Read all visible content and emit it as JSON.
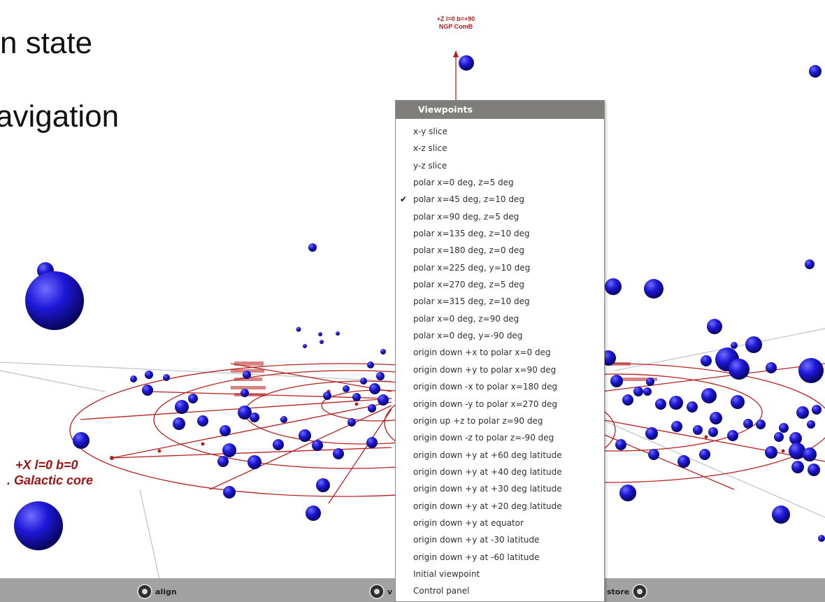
{
  "slide": {
    "line1": "n state",
    "line2": "avigation"
  },
  "scene": {
    "top_axis_label_line1": "+Z l=0 b=+90",
    "top_axis_label_line2": "NGP ComB",
    "x_axis_label_line1": "+X l=0 b=0",
    "x_axis_label_line2": ". Galactic core",
    "accent_red": "#b01c1c",
    "star_color": "#1a14c8"
  },
  "menu": {
    "title": "Viewpoints",
    "checked_index": 4,
    "items": [
      "x-y slice",
      "x-z slice",
      "y-z slice",
      "polar x=0 deg, z=5 deg",
      "polar x=45 deg, z=10 deg",
      "polar x=90 deg, z=5 deg",
      "polar x=135 deg, z=10 deg",
      "polar x=180 deg, z=0 deg",
      "polar x=225 deg, y=10 deg",
      "polar x=270 deg, z=5 deg",
      "polar x=315 deg, z=10 deg",
      "polar x=0 deg, z=90 deg",
      "polar x=0 deg, y=-90 deg",
      "origin down +x to polar x=0 deg",
      "origin down +y to polar x=90 deg",
      "origin down -x to polar x=180 deg",
      "origin down -y to polar x=270 deg",
      "origin up +z to polar z=90 deg",
      "origin down -z to polar z=-90 deg",
      "origin down +y at +60 deg latitude",
      "origin down +y at +40 deg latitude",
      "origin down +y at +30 deg latitude",
      "origin down +y at +20 deg latitude",
      "origin down +y at equator",
      "origin down +y at -30 latitude",
      "origin down +y at -60 latitude",
      "Initial viewpoint",
      "Control panel"
    ]
  },
  "toolbar": {
    "align_label": "align",
    "view_label": "v",
    "restore_label": "store"
  }
}
